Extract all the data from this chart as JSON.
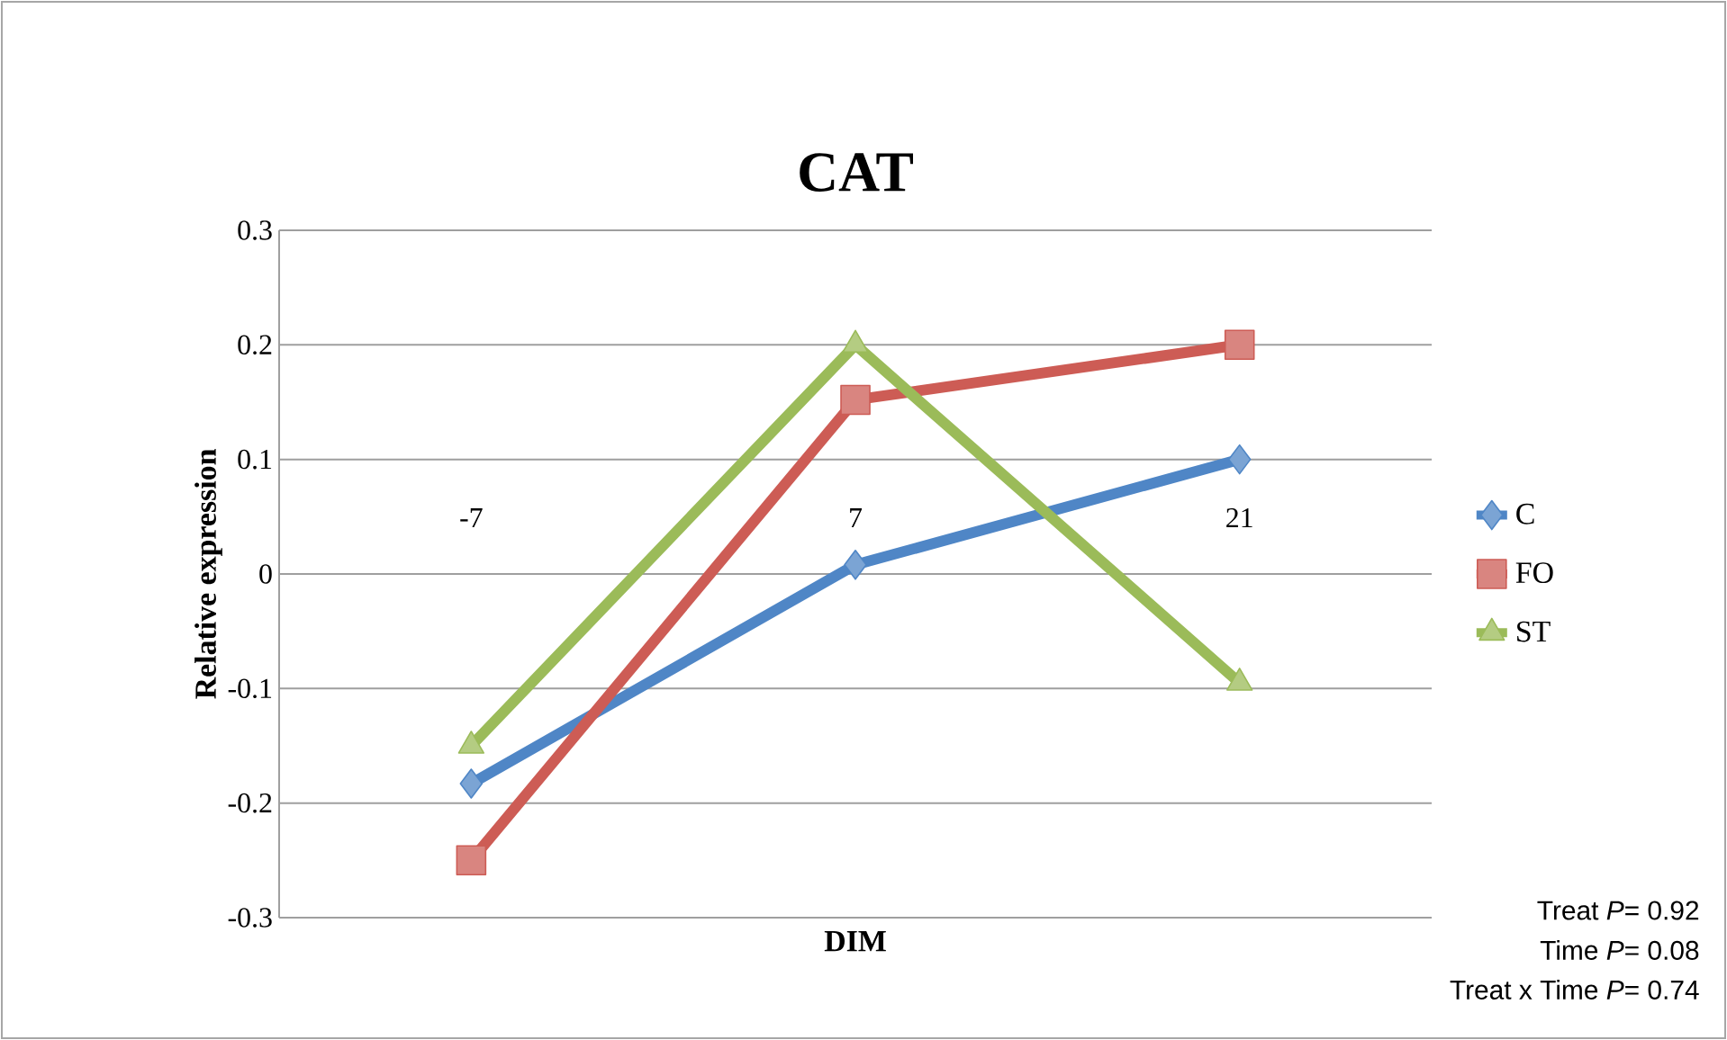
{
  "chart_data": {
    "type": "line",
    "title": "CAT",
    "xlabel": "DIM",
    "ylabel": "Relative expression",
    "categories": [
      "-7",
      "7",
      "21"
    ],
    "series": [
      {
        "name": "C",
        "color": "#4f86c6",
        "marker": "diamond",
        "values": [
          -0.183,
          0.008,
          0.1
        ]
      },
      {
        "name": "FO",
        "color": "#cd5c55",
        "marker": "square",
        "values": [
          -0.25,
          0.152,
          0.2
        ]
      },
      {
        "name": "ST",
        "color": "#9bbb59",
        "marker": "triangle",
        "values": [
          -0.15,
          0.2,
          -0.095
        ]
      }
    ],
    "ylim": [
      -0.3,
      0.3
    ],
    "yticks": [
      -0.3,
      -0.2,
      -0.1,
      0,
      0.1,
      0.2,
      0.3
    ],
    "grid": "y",
    "legend": "right",
    "line_style": "solid",
    "annotations": [
      "Treat *P*= 0.92",
      "Time *P*= 0.08",
      "Treat x Time *P*= 0.74"
    ]
  }
}
